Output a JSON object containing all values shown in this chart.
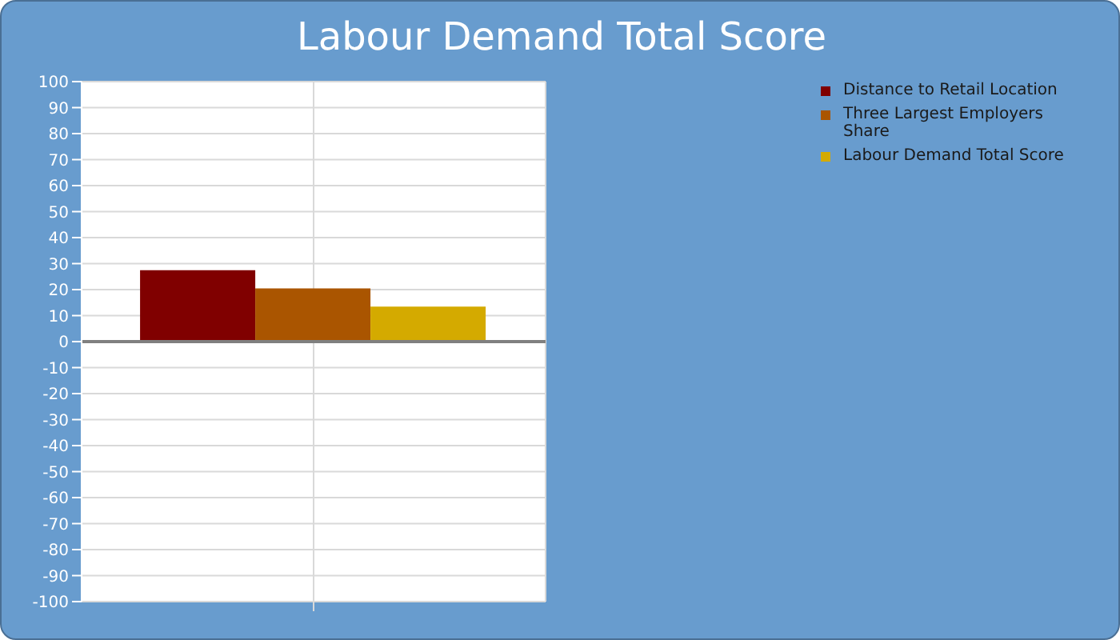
{
  "chart_data": {
    "type": "bar",
    "title": "Labour Demand Total Score",
    "categories": [
      null
    ],
    "series": [
      {
        "name": "Distance to Retail Location",
        "color": "#800000",
        "values": [
          27.5
        ]
      },
      {
        "name": "Three Largest Employers Share",
        "color": "#aa5500",
        "values": [
          20.5
        ]
      },
      {
        "name": "Labour Demand Total Score",
        "color": "#d4aa00",
        "values": [
          13.5
        ]
      }
    ],
    "ylim": [
      -100,
      100
    ],
    "yticks": [
      -100,
      -90,
      -80,
      -70,
      -60,
      -50,
      -40,
      -30,
      -20,
      -10,
      0,
      10,
      20,
      30,
      40,
      50,
      60,
      70,
      80,
      90,
      100
    ],
    "ref_lines": [
      {
        "axis": "y",
        "value": 0,
        "color": "#808080"
      }
    ],
    "grid": true,
    "legend": "right"
  }
}
